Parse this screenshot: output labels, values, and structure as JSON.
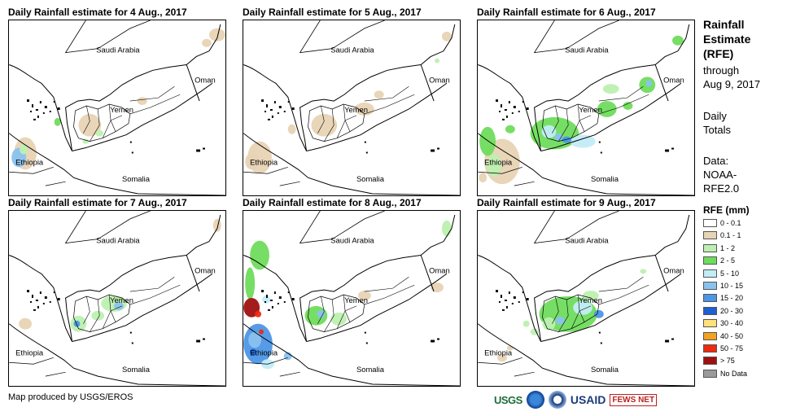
{
  "panels": [
    {
      "title": "Daily Rainfall estimate for 4 Aug., 2017"
    },
    {
      "title": "Daily Rainfall estimate for 5 Aug., 2017"
    },
    {
      "title": "Daily Rainfall estimate for 6 Aug., 2017"
    },
    {
      "title": "Daily Rainfall estimate for 7 Aug., 2017"
    },
    {
      "title": "Daily Rainfall estimate for 8 Aug., 2017"
    },
    {
      "title": "Daily Rainfall estimate for 9 Aug., 2017"
    }
  ],
  "map_labels": {
    "saudi": "Saudi Arabia",
    "oman": "Oman",
    "yemen": "Yemen",
    "ethiopia": "Ethiopia",
    "somalia": "Somalia"
  },
  "sidebar": {
    "title_1": "Rainfall",
    "title_2": "Estimate",
    "title_3": "(RFE)",
    "through": "through",
    "date": "Aug 9, 2017",
    "daily_1": "Daily",
    "daily_2": "Totals",
    "data_1": "Data:",
    "data_2": "NOAA-",
    "data_3": "RFE2.0"
  },
  "legend": {
    "title": "RFE (mm)",
    "items": [
      {
        "label": "0 - 0.1",
        "color": "#ffffff"
      },
      {
        "label": "0.1 - 1",
        "color": "#e8d3b4"
      },
      {
        "label": "1 - 2",
        "color": "#bdf0b0"
      },
      {
        "label": "2 - 5",
        "color": "#6fdc5c"
      },
      {
        "label": "5 - 10",
        "color": "#c3ecf7"
      },
      {
        "label": "10 - 15",
        "color": "#8ac2ee"
      },
      {
        "label": "15 - 20",
        "color": "#4c96e6"
      },
      {
        "label": "20 - 30",
        "color": "#1e5fd4"
      },
      {
        "label": "30 - 40",
        "color": "#ffe07a"
      },
      {
        "label": "40 - 50",
        "color": "#f5a020"
      },
      {
        "label": "50 - 75",
        "color": "#ee2a10"
      },
      {
        "label": "> 75",
        "color": "#a01010"
      },
      {
        "label": "No Data",
        "color": "#9a9a9a"
      }
    ]
  },
  "credit": "Map produced by USGS/EROS",
  "logos": {
    "usgs": "USGS",
    "usaid": "USAID",
    "fews": "FEWS NET"
  }
}
